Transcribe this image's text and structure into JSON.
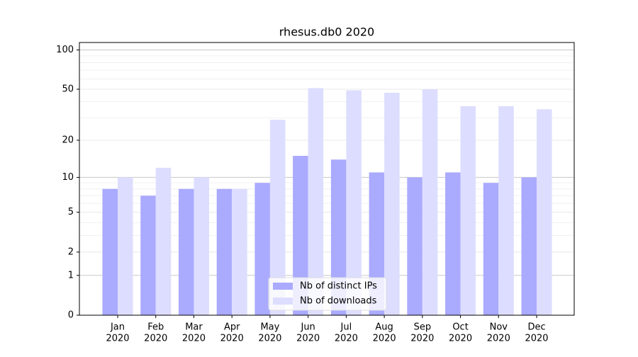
{
  "chart_data": {
    "type": "bar",
    "title": "rhesus.db0 2020",
    "scale": "symlog",
    "categories": [
      [
        "Jan",
        "2020"
      ],
      [
        "Feb",
        "2020"
      ],
      [
        "Mar",
        "2020"
      ],
      [
        "Apr",
        "2020"
      ],
      [
        "May",
        "2020"
      ],
      [
        "Jun",
        "2020"
      ],
      [
        "Jul",
        "2020"
      ],
      [
        "Aug",
        "2020"
      ],
      [
        "Sep",
        "2020"
      ],
      [
        "Oct",
        "2020"
      ],
      [
        "Nov",
        "2020"
      ],
      [
        "Dec",
        "2020"
      ]
    ],
    "series": [
      {
        "name": "Nb of distinct IPs",
        "color": "#aaaaff",
        "values": [
          8,
          7,
          8,
          8,
          9,
          15,
          14,
          11,
          10,
          11,
          9,
          10
        ]
      },
      {
        "name": "Nb of downloads",
        "color": "#ddddff",
        "values": [
          10,
          12,
          10,
          8,
          29,
          51,
          49,
          47,
          50,
          37,
          37,
          35
        ]
      }
    ],
    "ylim": [
      0,
      114
    ],
    "yticks": [
      0,
      1,
      2,
      5,
      10,
      20,
      50,
      100
    ],
    "minor_yticks": [
      3,
      4,
      6,
      7,
      8,
      9,
      30,
      40,
      60,
      70,
      80,
      90
    ],
    "grid": true,
    "legend": "lower center"
  }
}
